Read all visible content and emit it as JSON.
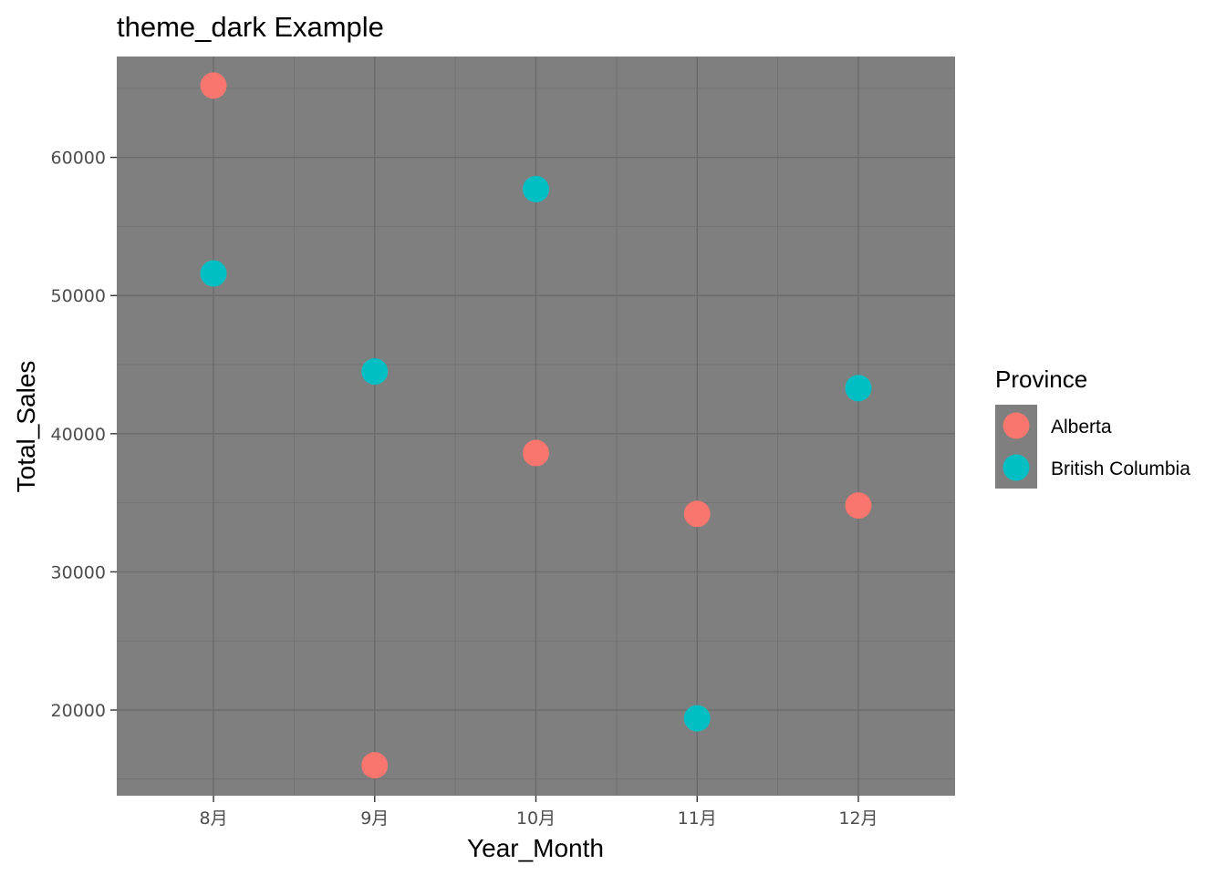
{
  "chart_data": {
    "type": "scatter",
    "title": "theme_dark Example",
    "xlabel": "Year_Month",
    "ylabel": "Total_Sales",
    "categories": [
      "8月",
      "9月",
      "10月",
      "11月",
      "12月"
    ],
    "ylim": [
      13800,
      67300
    ],
    "yticks": [
      20000,
      30000,
      40000,
      50000,
      60000
    ],
    "grid": true,
    "legend": {
      "title": "Province",
      "position": "right"
    },
    "colors": {
      "panel": "#7f7f7f",
      "grid_major": "#6b6b6b",
      "grid_minor": "#737373",
      "Alberta": "#f8766d",
      "British Columbia": "#00bfc4"
    },
    "series": [
      {
        "name": "Alberta",
        "color": "#f8766d",
        "values": [
          65200,
          16000,
          38600,
          34200,
          34800
        ]
      },
      {
        "name": "British Columbia",
        "color": "#00bfc4",
        "values": [
          51600,
          44500,
          57700,
          19400,
          43300
        ]
      }
    ]
  }
}
